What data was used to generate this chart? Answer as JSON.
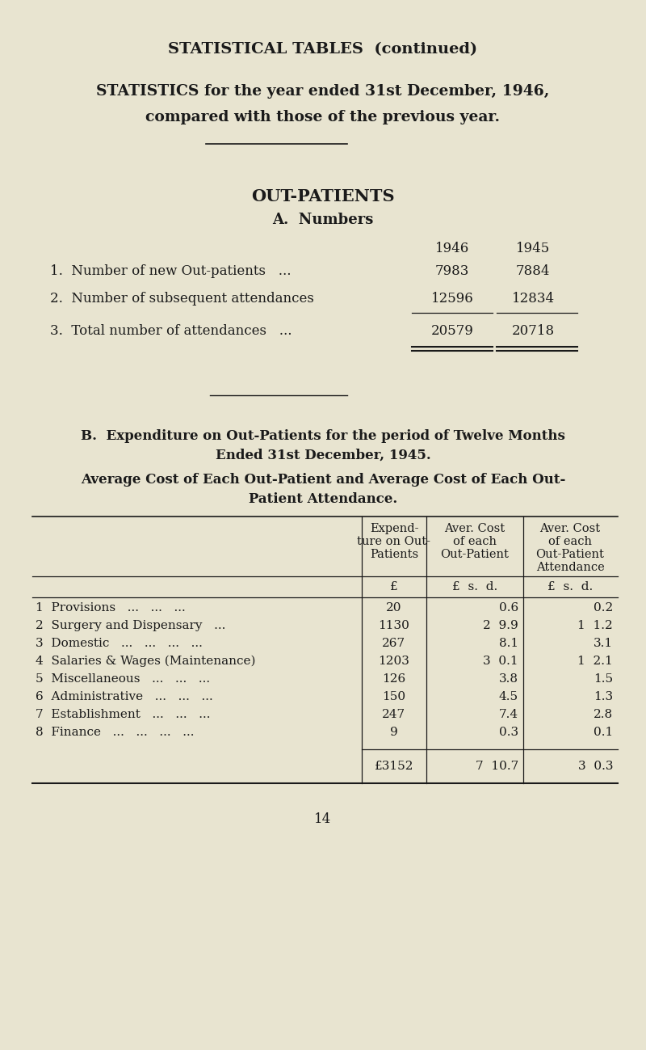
{
  "bg_color": "#e8e4d0",
  "text_color": "#1a1a1a",
  "title1": "STATISTICAL TABLES  (continued)",
  "title2": "STATISTICS for the year ended 31st December, 1946,",
  "title3": "compared with those of the previous year.",
  "section_a_title": "OUT-PATIENTS",
  "section_a_sub": "A.  Numbers",
  "col_years": [
    "1946",
    "1945"
  ],
  "numbers_rows": [
    [
      "1.  Number of new Out-patients   ...",
      "7983",
      "7884"
    ],
    [
      "2.  Number of subsequent attendances",
      "12596",
      "12834"
    ],
    [
      "3.  Total number of attendances   ...",
      "20579",
      "20718"
    ]
  ],
  "section_b_title1": "B.  Expenditure on Out-Patients for the period of Twelve Months",
  "section_b_title2": "Ended 31st December, 1945.",
  "section_b_sub1": "Average Cost of Each Out-Patient and Average Cost of Each Out-",
  "section_b_sub2": "Patient Attendance.",
  "table_col_headers": [
    [
      "Expend-",
      "ture on Out-",
      "Patients"
    ],
    [
      "Aver. Cost",
      "of each",
      "Out-Patient"
    ],
    [
      "Aver. Cost",
      "of each",
      "Out-Patient",
      "Attendance"
    ]
  ],
  "table_rows": [
    [
      "1  Provisions   ...   ...   ...",
      "20",
      "0.6",
      "0.2"
    ],
    [
      "2  Surgery and Dispensary   ...",
      "1130",
      "2  9.9",
      "1  1.2"
    ],
    [
      "3  Domestic   ...   ...   ...   ...",
      "267",
      "8.1",
      "3.1"
    ],
    [
      "4  Salaries & Wages (Maintenance)",
      "1203",
      "3  0.1",
      "1  2.1"
    ],
    [
      "5  Miscellaneous   ...   ...   ...",
      "126",
      "3.8",
      "1.5"
    ],
    [
      "6  Administrative   ...   ...   ...",
      "150",
      "4.5",
      "1.3"
    ],
    [
      "7  Establishment   ...   ...   ...",
      "247",
      "7.4",
      "2.8"
    ],
    [
      "8  Finance   ...   ...   ...   ...",
      "9",
      "0.3",
      "0.1"
    ]
  ],
  "table_total": [
    "£3152",
    "7  10.7",
    "3  0.3"
  ],
  "page_number": "14"
}
